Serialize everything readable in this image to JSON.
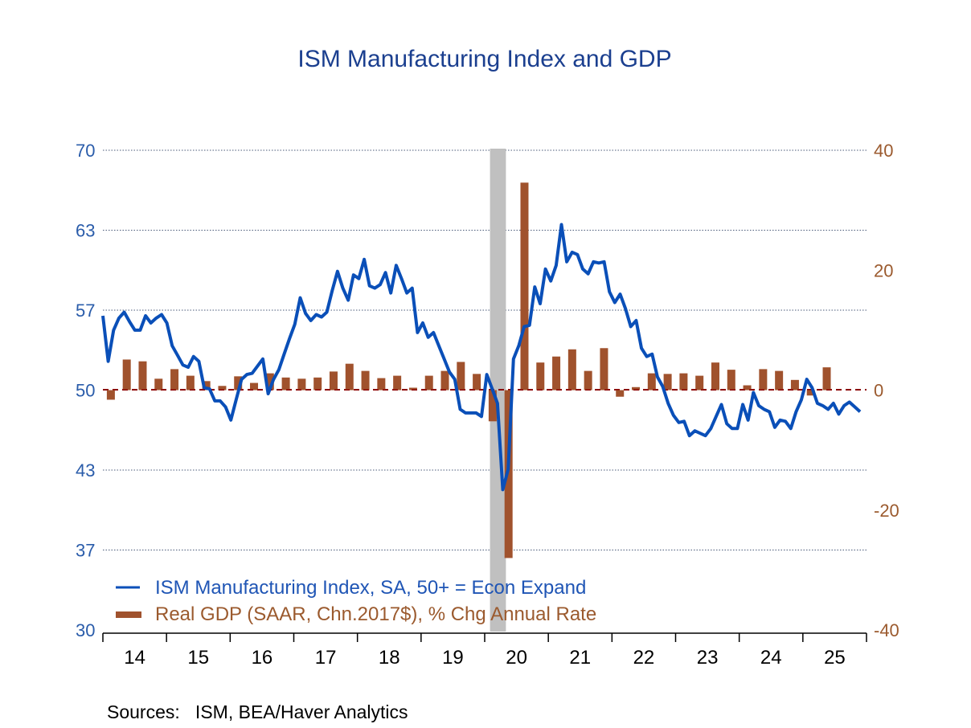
{
  "chart_data": {
    "type": "bar+line",
    "title": "ISM Manufacturing Index and GDP",
    "left_axis": {
      "ylim": [
        30,
        70
      ],
      "ticks": [
        70,
        63.33,
        56.67,
        50,
        43.33,
        36.67,
        30
      ],
      "tick_labels": [
        "70",
        "63",
        "57",
        "50",
        "43",
        "37",
        "30"
      ],
      "color": "#2a5caa"
    },
    "right_axis": {
      "ylim": [
        -40,
        40
      ],
      "ticks": [
        40,
        20,
        0,
        -20,
        -40
      ],
      "tick_labels": [
        "40",
        "20",
        "0",
        "-20",
        "-40"
      ],
      "color": "#9b5a2e"
    },
    "x_axis": {
      "range": [
        "2014-01",
        "2025-12"
      ],
      "tick_labels": [
        "14",
        "15",
        "16",
        "17",
        "18",
        "19",
        "20",
        "21",
        "22",
        "23",
        "24",
        "25"
      ]
    },
    "grid": true,
    "legend_placement": "bottom-left",
    "recession_shading": {
      "start": "2020-02",
      "end": "2020-04",
      "color": "#c0c0c0"
    },
    "series": [
      {
        "name": "ISM Manufacturing Index, SA, 50+ = Econ Expand",
        "type": "line",
        "axis": "left",
        "frequency": "monthly",
        "start": "2013-12",
        "color": "#0a4fb8",
        "values": [
          56.2,
          52.4,
          55.0,
          56.0,
          56.5,
          55.7,
          55.0,
          55.0,
          56.2,
          55.6,
          56.0,
          56.3,
          55.6,
          53.7,
          52.9,
          52.1,
          51.9,
          52.8,
          52.4,
          50.2,
          50.1,
          49.1,
          49.1,
          48.6,
          47.5,
          49.2,
          50.9,
          51.3,
          51.4,
          52.0,
          52.6,
          49.7,
          50.9,
          51.7,
          53.0,
          54.3,
          55.5,
          57.7,
          56.4,
          55.8,
          56.3,
          56.1,
          56.5,
          58.3,
          59.9,
          58.5,
          57.5,
          59.6,
          59.3,
          60.9,
          58.7,
          58.5,
          58.8,
          59.8,
          58.1,
          60.4,
          59.3,
          58.1,
          58.5,
          54.8,
          55.6,
          54.4,
          54.8,
          53.7,
          52.6,
          51.5,
          50.9,
          48.4,
          48.1,
          48.1,
          48.1,
          47.8,
          51.3,
          50.1,
          48.9,
          41.7,
          43.4,
          52.6,
          53.7,
          55.3,
          55.4,
          58.6,
          57.2,
          60.1,
          59.1,
          60.4,
          63.8,
          60.7,
          61.5,
          61.3,
          60.1,
          59.7,
          60.7,
          60.6,
          60.7,
          58.2,
          57.3,
          58.0,
          56.8,
          55.3,
          55.8,
          53.5,
          52.8,
          53.0,
          51.1,
          50.3,
          48.9,
          47.9,
          47.3,
          47.4,
          46.2,
          46.6,
          46.4,
          46.2,
          46.8,
          47.8,
          48.8,
          47.2,
          46.8,
          46.8,
          48.8,
          47.5,
          49.8,
          48.7,
          48.4,
          48.2,
          46.9,
          47.5,
          47.4,
          46.8,
          48.2,
          49.2,
          50.9,
          50.2,
          48.9,
          48.7,
          48.4,
          48.9,
          48.0,
          48.7,
          49.0,
          48.6,
          48.2
        ]
      },
      {
        "name": "Real GDP (SAAR, Chn.2017$), % Chg Annual Rate",
        "type": "bar",
        "axis": "right",
        "frequency": "quarterly",
        "start": "2014-Q1",
        "color": "#a0522d",
        "values": [
          -1.6,
          5.1,
          4.8,
          1.9,
          3.5,
          2.4,
          1.5,
          0.7,
          2.3,
          1.2,
          2.8,
          2.1,
          1.9,
          2.1,
          3.1,
          4.4,
          3.2,
          2.0,
          2.4,
          0.4,
          2.4,
          3.2,
          4.7,
          2.7,
          -5.2,
          -28.0,
          34.6,
          4.6,
          5.6,
          6.8,
          3.2,
          7.0,
          -1.1,
          0.5,
          2.8,
          2.7,
          2.8,
          2.4,
          4.6,
          3.4,
          0.8,
          3.5,
          3.2,
          1.7,
          -0.9,
          3.8
        ]
      }
    ],
    "legend": [
      "ISM Manufacturing Index, SA, 50+ = Econ Expand",
      "Real GDP (SAAR, Chn.2017$), % Chg Annual Rate"
    ],
    "source": "Sources:   ISM, BEA/Haver Analytics"
  }
}
